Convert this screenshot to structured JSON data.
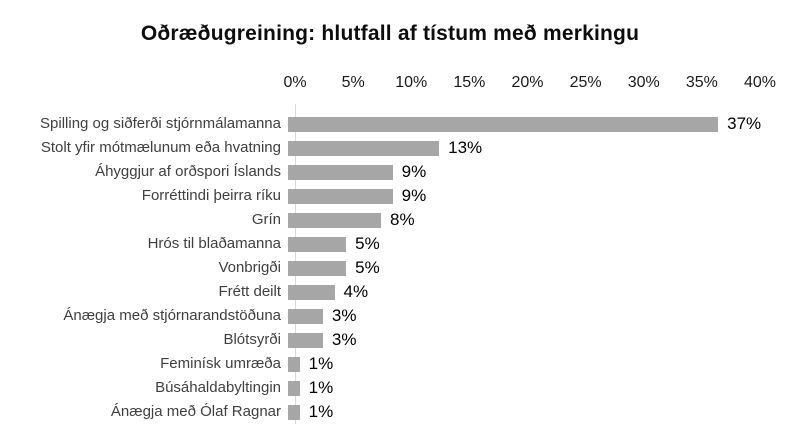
{
  "title": "Oðræðugreining: hlutfall af tístum með merkingu",
  "colors": {
    "bar": "#a6a6a6",
    "axis_line": "#d9d9d9",
    "category_text": "#404040",
    "value_text": "#000000",
    "title_text": "#0d0d0d"
  },
  "chart_data": {
    "type": "bar",
    "orientation": "horizontal",
    "title": "Oðræðugreining: hlutfall af tístum með merkingu",
    "categories": [
      "Spilling og siðferði stjórnmálamanna",
      "Stolt yfir mótmælunum eða hvatning",
      "Áhyggjur af orðspori Íslands",
      "Forréttindi þeirra ríku",
      "Grín",
      "Hrós til blaðamanna",
      "Vonbrigði",
      "Frétt deilt",
      "Ánægja með stjórnarandstöðuna",
      "Blótsyrði",
      "Feminísk umræða",
      "Búsáhaldabyltingin",
      "Ánægja með Ólaf Ragnar"
    ],
    "values": [
      37,
      13,
      9,
      9,
      8,
      5,
      5,
      4,
      3,
      3,
      1,
      1,
      1
    ],
    "value_labels": [
      "37%",
      "13%",
      "9%",
      "9%",
      "8%",
      "5%",
      "5%",
      "4%",
      "3%",
      "3%",
      "1%",
      "1%",
      "1%"
    ],
    "x_ticks": [
      "0%",
      "5%",
      "10%",
      "15%",
      "20%",
      "25%",
      "30%",
      "35%",
      "40%"
    ],
    "x_tick_values": [
      0,
      5,
      10,
      15,
      20,
      25,
      30,
      35,
      40
    ],
    "xlim": [
      0,
      40
    ],
    "xlabel": "",
    "ylabel": "",
    "grid": false,
    "legend": false,
    "data_labels": true
  }
}
